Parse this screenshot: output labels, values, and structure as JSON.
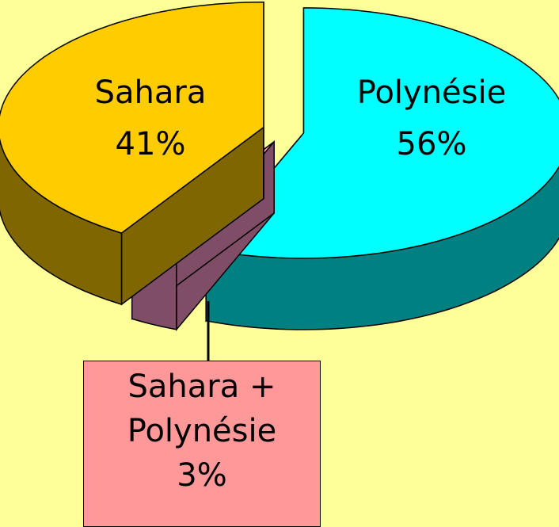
{
  "chart_data": {
    "type": "pie",
    "categories": [
      "Polynésie",
      "Sahara + Polynésie",
      "Sahara"
    ],
    "values": [
      56,
      3,
      41
    ],
    "value_labels": [
      "56%",
      "3%",
      "41%"
    ],
    "colors": [
      "#00FFFF",
      "#FF99CC",
      "#FFCC00"
    ]
  }
}
